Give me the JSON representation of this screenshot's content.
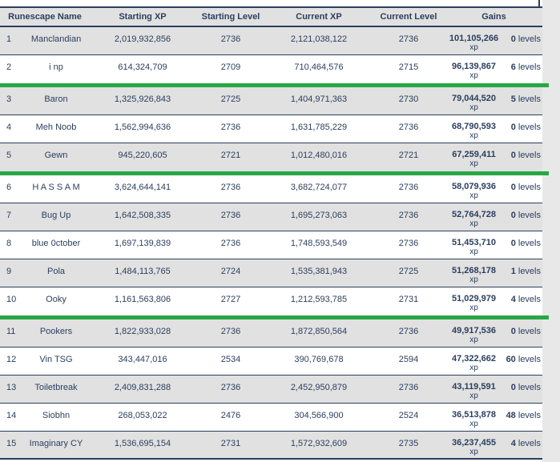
{
  "colors": {
    "navy": "#2b3f5e",
    "green_separator": "#27a844",
    "row_shaded": "#e1e1e1",
    "page_margin": "#e8e8e8"
  },
  "table": {
    "headers": {
      "name": "Runescape Name",
      "starting_xp": "Starting XP",
      "starting_level": "Starting Level",
      "current_xp": "Current XP",
      "current_level": "Current Level",
      "gains": "Gains"
    },
    "xp_suffix": "xp",
    "levels_suffix": " levels",
    "separators_after_ranks": [
      2,
      5,
      10
    ],
    "rows": [
      {
        "rank": "1",
        "name": "Manclandian",
        "starting_xp": "2,019,932,856",
        "starting_level": "2736",
        "current_xp": "2,121,038,122",
        "current_level": "2736",
        "gains_xp": "101,105,266",
        "gains_levels": "0"
      },
      {
        "rank": "2",
        "name": "i np",
        "starting_xp": "614,324,709",
        "starting_level": "2709",
        "current_xp": "710,464,576",
        "current_level": "2715",
        "gains_xp": "96,139,867",
        "gains_levels": "6"
      },
      {
        "rank": "3",
        "name": "Baron",
        "starting_xp": "1,325,926,843",
        "starting_level": "2725",
        "current_xp": "1,404,971,363",
        "current_level": "2730",
        "gains_xp": "79,044,520",
        "gains_levels": "5"
      },
      {
        "rank": "4",
        "name": "Meh Noob",
        "starting_xp": "1,562,994,636",
        "starting_level": "2736",
        "current_xp": "1,631,785,229",
        "current_level": "2736",
        "gains_xp": "68,790,593",
        "gains_levels": "0"
      },
      {
        "rank": "5",
        "name": "Gewn",
        "starting_xp": "945,220,605",
        "starting_level": "2721",
        "current_xp": "1,012,480,016",
        "current_level": "2721",
        "gains_xp": "67,259,411",
        "gains_levels": "0"
      },
      {
        "rank": "6",
        "name": "H A S S A M",
        "starting_xp": "3,624,644,141",
        "starting_level": "2736",
        "current_xp": "3,682,724,077",
        "current_level": "2736",
        "gains_xp": "58,079,936",
        "gains_levels": "0"
      },
      {
        "rank": "7",
        "name": "Bug Up",
        "starting_xp": "1,642,508,335",
        "starting_level": "2736",
        "current_xp": "1,695,273,063",
        "current_level": "2736",
        "gains_xp": "52,764,728",
        "gains_levels": "0"
      },
      {
        "rank": "8",
        "name": "blue 0ctober",
        "starting_xp": "1,697,139,839",
        "starting_level": "2736",
        "current_xp": "1,748,593,549",
        "current_level": "2736",
        "gains_xp": "51,453,710",
        "gains_levels": "0"
      },
      {
        "rank": "9",
        "name": "Pola",
        "starting_xp": "1,484,113,765",
        "starting_level": "2724",
        "current_xp": "1,535,381,943",
        "current_level": "2725",
        "gains_xp": "51,268,178",
        "gains_levels": "1"
      },
      {
        "rank": "10",
        "name": "Ooky",
        "starting_xp": "1,161,563,806",
        "starting_level": "2727",
        "current_xp": "1,212,593,785",
        "current_level": "2731",
        "gains_xp": "51,029,979",
        "gains_levels": "4"
      },
      {
        "rank": "11",
        "name": "Pookers",
        "starting_xp": "1,822,933,028",
        "starting_level": "2736",
        "current_xp": "1,872,850,564",
        "current_level": "2736",
        "gains_xp": "49,917,536",
        "gains_levels": "0"
      },
      {
        "rank": "12",
        "name": "Vin TSG",
        "starting_xp": "343,447,016",
        "starting_level": "2534",
        "current_xp": "390,769,678",
        "current_level": "2594",
        "gains_xp": "47,322,662",
        "gains_levels": "60"
      },
      {
        "rank": "13",
        "name": "Toiletbreak",
        "starting_xp": "2,409,831,288",
        "starting_level": "2736",
        "current_xp": "2,452,950,879",
        "current_level": "2736",
        "gains_xp": "43,119,591",
        "gains_levels": "0"
      },
      {
        "rank": "14",
        "name": "Siobhn",
        "starting_xp": "268,053,022",
        "starting_level": "2476",
        "current_xp": "304,566,900",
        "current_level": "2524",
        "gains_xp": "36,513,878",
        "gains_levels": "48"
      },
      {
        "rank": "15",
        "name": "Imaginary CY",
        "starting_xp": "1,536,695,154",
        "starting_level": "2731",
        "current_xp": "1,572,932,609",
        "current_level": "2735",
        "gains_xp": "36,237,455",
        "gains_levels": "4"
      }
    ]
  }
}
